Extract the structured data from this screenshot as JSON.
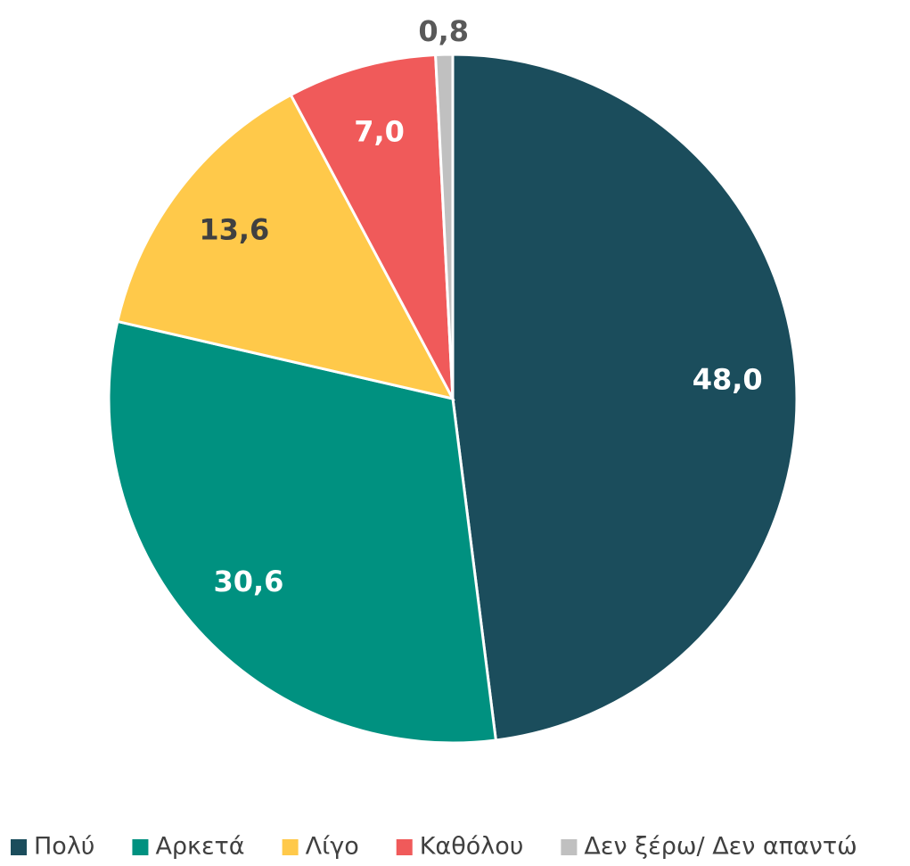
{
  "chart_data": {
    "type": "pie",
    "categories": [
      "Πολύ",
      "Αρκετά",
      "Λίγο",
      "Καθόλου",
      "Δεν ξέρω/ Δεν απαντώ"
    ],
    "values": [
      48.0,
      30.6,
      13.6,
      7.0,
      0.8
    ],
    "value_labels": [
      "48,0",
      "30,6",
      "13,6",
      "7,0",
      "0,8"
    ],
    "colors": [
      "#1b4d5c",
      "#009180",
      "#ffc94a",
      "#f05a5a",
      "#c0c0c0"
    ],
    "legend": "bottom"
  }
}
